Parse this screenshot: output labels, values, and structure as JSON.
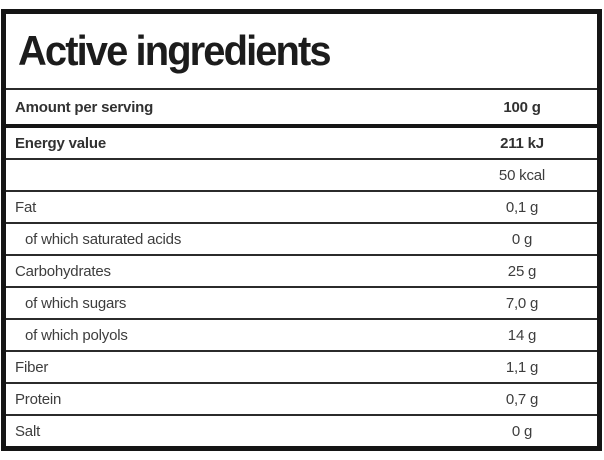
{
  "title": "Active ingredients",
  "header": {
    "label": "Amount per serving",
    "value": "100 g"
  },
  "rows": [
    {
      "label": "Energy value",
      "value": "211 kJ",
      "bold": true,
      "indent": false
    },
    {
      "label": "",
      "value": "50 kcal",
      "bold": false,
      "indent": false
    },
    {
      "label": "Fat",
      "value": "0,1 g",
      "bold": false,
      "indent": false
    },
    {
      "label": "of which saturated acids",
      "value": "0 g",
      "bold": false,
      "indent": true
    },
    {
      "label": "Carbohydrates",
      "value": "25 g",
      "bold": false,
      "indent": false
    },
    {
      "label": "of which sugars",
      "value": "7,0 g",
      "bold": false,
      "indent": true
    },
    {
      "label": "of which polyols",
      "value": "14 g",
      "bold": false,
      "indent": true
    },
    {
      "label": "Fiber",
      "value": "1,1 g",
      "bold": false,
      "indent": false
    },
    {
      "label": "Protein",
      "value": "0,7 g",
      "bold": false,
      "indent": false
    },
    {
      "label": "Salt",
      "value": "0 g",
      "bold": false,
      "indent": false
    }
  ],
  "colors": {
    "border": "#151515",
    "text": "#3d3d3d"
  }
}
